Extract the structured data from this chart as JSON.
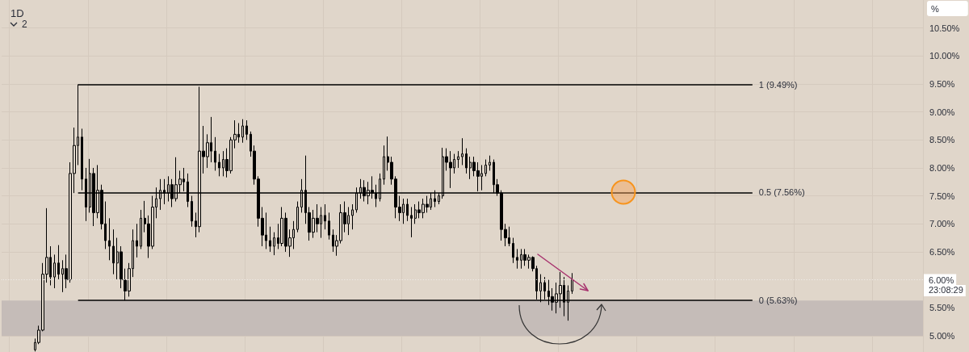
{
  "chart_data": {
    "type": "candlestick",
    "title": "1D",
    "categories": [
      null,
      null,
      null,
      null,
      null,
      null,
      null,
      null,
      null,
      null,
      null,
      null,
      null,
      null,
      null,
      null,
      null,
      null,
      null,
      null,
      null,
      null,
      null,
      null,
      null,
      null,
      null,
      null,
      null,
      null,
      null,
      null,
      null,
      null,
      null,
      null,
      null,
      null,
      null,
      null,
      null,
      null,
      null,
      null,
      null,
      null,
      null,
      null,
      null,
      null,
      null,
      null,
      null,
      null,
      null,
      null,
      null,
      null,
      null,
      null,
      null,
      null,
      null,
      null,
      null,
      null,
      null,
      null,
      null,
      null,
      null,
      null,
      null,
      null,
      null,
      null,
      null,
      null,
      null,
      null,
      null,
      null,
      null,
      null,
      null,
      null,
      null,
      null,
      null,
      null,
      null,
      null,
      null,
      null,
      null,
      null,
      null,
      null,
      null,
      null,
      null,
      null,
      null,
      null,
      null,
      null,
      null,
      null,
      null,
      null,
      null,
      null,
      null,
      null,
      null,
      null,
      null,
      null,
      null,
      null,
      null,
      null,
      null,
      null,
      null,
      null,
      null,
      null,
      null,
      null,
      null,
      null,
      null,
      null,
      null,
      null,
      null,
      null,
      null,
      null,
      null,
      null,
      null,
      null,
      null,
      null,
      null,
      null,
      null,
      null,
      null,
      null,
      null,
      null,
      null,
      null,
      null,
      null,
      null,
      null,
      null,
      null,
      null,
      null,
      null,
      null,
      null,
      null,
      null,
      null,
      null,
      null,
      null,
      null,
      null,
      null,
      null,
      null,
      null,
      null,
      null,
      null,
      null,
      null,
      null,
      null,
      null,
      null,
      null,
      null,
      null,
      null,
      null,
      null,
      null,
      null,
      null,
      null,
      null,
      null,
      null,
      null,
      null,
      null,
      null,
      null,
      null,
      null,
      null,
      null,
      null,
      null,
      null,
      null,
      null,
      null,
      null,
      null,
      null,
      null,
      null,
      null,
      null,
      null,
      null,
      null,
      null,
      null,
      null,
      null,
      null,
      null,
      null,
      null,
      null
    ],
    "ohlc": [
      null,
      null,
      null,
      null,
      null,
      null,
      null,
      null,
      [
        4.75,
        4.95,
        4.72,
        4.88
      ],
      [
        4.88,
        5.18,
        4.85,
        5.1
      ],
      [
        5.1,
        6.3,
        5.08,
        6.1
      ],
      [
        6.1,
        7.28,
        5.95,
        6.4
      ],
      [
        6.4,
        6.6,
        5.9,
        6.05
      ],
      [
        6.05,
        6.45,
        5.85,
        6.3
      ],
      [
        6.3,
        6.62,
        6.0,
        6.1
      ],
      [
        6.1,
        6.35,
        5.78,
        6.2
      ],
      [
        6.2,
        6.45,
        5.85,
        6.0
      ],
      [
        6.0,
        8.1,
        5.95,
        7.9
      ],
      [
        7.9,
        8.72,
        7.55,
        8.4
      ],
      [
        8.4,
        9.49,
        8.05,
        8.55
      ],
      [
        8.55,
        8.7,
        7.6,
        7.8
      ],
      [
        7.8,
        8.0,
        7.05,
        7.3
      ],
      [
        7.3,
        8.16,
        7.2,
        7.9
      ],
      [
        7.9,
        8.0,
        6.96,
        7.2
      ],
      [
        7.2,
        8.05,
        7.1,
        7.6
      ],
      [
        7.6,
        7.7,
        6.9,
        7.0
      ],
      [
        7.0,
        7.4,
        6.55,
        6.7
      ],
      [
        6.7,
        7.1,
        6.35,
        6.6
      ],
      [
        6.6,
        6.9,
        6.1,
        6.3
      ],
      [
        6.3,
        6.75,
        6.0,
        6.5
      ],
      [
        6.5,
        6.6,
        5.85,
        6.0
      ],
      [
        6.0,
        6.2,
        5.63,
        5.8
      ],
      [
        5.8,
        6.3,
        5.7,
        6.2
      ],
      [
        6.2,
        6.9,
        6.05,
        6.7
      ],
      [
        6.7,
        7.0,
        6.4,
        6.6
      ],
      [
        6.6,
        7.25,
        6.55,
        7.1
      ],
      [
        7.1,
        7.41,
        6.85,
        7.0
      ],
      [
        7.0,
        7.15,
        6.39,
        6.6
      ],
      [
        6.6,
        7.5,
        6.55,
        7.3
      ],
      [
        7.3,
        7.65,
        7.1,
        7.45
      ],
      [
        7.45,
        7.8,
        7.25,
        7.6
      ],
      [
        7.6,
        7.8,
        7.35,
        7.55
      ],
      [
        7.55,
        7.85,
        7.4,
        7.7
      ],
      [
        7.7,
        7.8,
        7.3,
        7.45
      ],
      [
        7.45,
        8.19,
        7.4,
        7.7
      ],
      [
        7.7,
        7.95,
        7.55,
        7.8
      ],
      [
        7.8,
        8.0,
        7.58,
        7.75
      ],
      [
        7.75,
        7.9,
        7.3,
        7.4
      ],
      [
        7.4,
        7.5,
        6.95,
        7.05
      ],
      [
        7.05,
        7.2,
        6.76,
        6.95
      ],
      [
        6.95,
        9.45,
        6.85,
        8.3
      ],
      [
        8.3,
        8.75,
        7.9,
        8.2
      ],
      [
        8.2,
        8.6,
        8.0,
        8.45
      ],
      [
        8.45,
        8.91,
        8.1,
        8.3
      ],
      [
        8.3,
        8.55,
        7.95,
        8.1
      ],
      [
        8.1,
        8.25,
        7.85,
        8.0
      ],
      [
        8.0,
        8.3,
        7.85,
        8.15
      ],
      [
        8.15,
        8.35,
        7.83,
        7.95
      ],
      [
        7.95,
        8.55,
        7.9,
        8.5
      ],
      [
        8.5,
        8.85,
        8.35,
        8.6
      ],
      [
        8.6,
        8.8,
        8.45,
        8.55
      ],
      [
        8.55,
        8.87,
        8.45,
        8.75
      ],
      [
        8.75,
        8.85,
        8.5,
        8.6
      ],
      [
        8.6,
        8.65,
        8.2,
        8.3
      ],
      [
        8.3,
        8.4,
        7.7,
        7.8
      ],
      [
        7.8,
        7.85,
        6.95,
        7.1
      ],
      [
        7.1,
        7.3,
        6.6,
        6.8
      ],
      [
        6.8,
        7.2,
        6.55,
        6.7
      ],
      [
        6.7,
        6.95,
        6.5,
        6.6
      ],
      [
        6.6,
        6.85,
        6.44,
        6.75
      ],
      [
        6.75,
        7.0,
        6.55,
        6.65
      ],
      [
        6.65,
        7.3,
        6.6,
        7.1
      ],
      [
        7.1,
        7.2,
        6.5,
        6.6
      ],
      [
        6.6,
        6.9,
        6.41,
        6.75
      ],
      [
        6.75,
        7.05,
        6.55,
        6.9
      ],
      [
        6.9,
        7.4,
        6.85,
        7.3
      ],
      [
        7.3,
        7.8,
        7.2,
        7.6
      ],
      [
        7.6,
        8.22,
        7.0,
        7.2
      ],
      [
        7.2,
        7.3,
        6.7,
        6.85
      ],
      [
        6.85,
        7.25,
        6.75,
        7.1
      ],
      [
        7.1,
        7.35,
        6.85,
        7.0
      ],
      [
        7.0,
        7.3,
        6.75,
        7.15
      ],
      [
        7.15,
        7.35,
        6.9,
        7.05
      ],
      [
        7.05,
        7.2,
        6.72,
        6.8
      ],
      [
        6.8,
        6.9,
        6.5,
        6.6
      ],
      [
        6.6,
        6.8,
        6.43,
        6.7
      ],
      [
        6.7,
        7.35,
        6.65,
        7.2
      ],
      [
        7.2,
        7.4,
        6.85,
        7.0
      ],
      [
        7.0,
        7.3,
        6.8,
        7.15
      ],
      [
        7.15,
        7.35,
        6.9,
        7.25
      ],
      [
        7.25,
        7.65,
        7.2,
        7.55
      ],
      [
        7.55,
        7.8,
        7.45,
        7.65
      ],
      [
        7.65,
        7.78,
        7.4,
        7.5
      ],
      [
        7.5,
        7.75,
        7.35,
        7.6
      ],
      [
        7.6,
        7.85,
        7.45,
        7.55
      ],
      [
        7.55,
        7.7,
        7.3,
        7.45
      ],
      [
        7.45,
        7.9,
        7.4,
        7.8
      ],
      [
        7.8,
        8.4,
        7.7,
        8.2
      ],
      [
        8.2,
        8.56,
        7.95,
        8.1
      ],
      [
        8.1,
        8.2,
        7.7,
        7.8
      ],
      [
        7.8,
        7.85,
        7.1,
        7.3
      ],
      [
        7.3,
        7.5,
        7.05,
        7.2
      ],
      [
        7.2,
        7.45,
        7.0,
        7.35
      ],
      [
        7.35,
        7.45,
        7.05,
        7.15
      ],
      [
        7.15,
        7.3,
        6.76,
        7.1
      ],
      [
        7.1,
        7.35,
        7.0,
        7.25
      ],
      [
        7.25,
        7.4,
        7.1,
        7.2
      ],
      [
        7.2,
        7.45,
        7.1,
        7.35
      ],
      [
        7.35,
        7.5,
        7.2,
        7.3
      ],
      [
        7.3,
        7.55,
        7.25,
        7.45
      ],
      [
        7.45,
        7.6,
        7.3,
        7.4
      ],
      [
        7.4,
        7.55,
        7.35,
        7.5
      ],
      [
        7.5,
        8.36,
        7.45,
        8.2
      ],
      [
        8.2,
        8.35,
        7.95,
        8.1
      ],
      [
        8.1,
        8.3,
        7.64,
        8.0
      ],
      [
        8.0,
        8.25,
        7.9,
        8.15
      ],
      [
        8.15,
        8.3,
        8.0,
        8.2
      ],
      [
        8.2,
        8.53,
        8.05,
        8.25
      ],
      [
        8.25,
        8.35,
        7.9,
        8.0
      ],
      [
        8.0,
        8.2,
        7.8,
        8.1
      ],
      [
        8.1,
        8.2,
        7.85,
        7.95
      ],
      [
        7.95,
        8.1,
        7.58,
        7.85
      ],
      [
        7.85,
        8.05,
        7.6,
        7.9
      ],
      [
        7.9,
        8.15,
        7.85,
        8.05
      ],
      [
        8.05,
        8.22,
        7.95,
        8.1
      ],
      [
        8.1,
        8.15,
        7.55,
        7.7
      ],
      [
        7.7,
        7.8,
        7.5,
        7.55
      ],
      [
        7.55,
        7.6,
        6.7,
        6.9
      ],
      [
        6.9,
        7.0,
        6.6,
        6.75
      ],
      [
        6.75,
        6.95,
        6.6,
        6.65
      ],
      [
        6.65,
        6.75,
        6.3,
        6.4
      ],
      [
        6.4,
        6.55,
        6.2,
        6.35
      ],
      [
        6.35,
        6.55,
        6.2,
        6.45
      ],
      [
        6.45,
        6.55,
        6.25,
        6.35
      ],
      [
        6.35,
        6.45,
        6.2,
        6.4
      ],
      [
        6.4,
        6.42,
        6.15,
        6.2
      ],
      [
        6.2,
        6.25,
        5.65,
        5.8
      ],
      [
        5.8,
        6.1,
        5.6,
        5.95
      ],
      [
        5.95,
        6.05,
        5.65,
        5.8
      ],
      [
        5.8,
        6.0,
        5.55,
        5.7
      ],
      [
        5.7,
        5.85,
        5.45,
        5.6
      ],
      [
        5.6,
        5.95,
        5.4,
        5.75
      ],
      [
        5.75,
        6.14,
        5.5,
        5.9
      ],
      [
        5.9,
        6.05,
        5.35,
        5.6
      ],
      [
        5.6,
        5.9,
        5.27,
        5.8
      ],
      [
        5.8,
        6.12,
        5.75,
        6.0
      ],
      null,
      null,
      null,
      null,
      null,
      null,
      null,
      null,
      null,
      null,
      null,
      null,
      null,
      null,
      null,
      null,
      null,
      null,
      null,
      null,
      null,
      null,
      null,
      null,
      null,
      null,
      null,
      null,
      null,
      null,
      null,
      null,
      null,
      null,
      null,
      null,
      null,
      null,
      null,
      null,
      null,
      null,
      null,
      null,
      null,
      null,
      null,
      null,
      null,
      null,
      null,
      null,
      null,
      null,
      null,
      null,
      null,
      null,
      null,
      null,
      null,
      null,
      null,
      null,
      null,
      null,
      null,
      null,
      null,
      null,
      null,
      null,
      null,
      null,
      null,
      null,
      null,
      null,
      null,
      null,
      null,
      null,
      null,
      null,
      null,
      null,
      null,
      null,
      null
    ],
    "color": "#000000",
    "ylabel": "%",
    "ylim": [
      4.71,
      11.0
    ],
    "yticks": [
      {
        "value": 5.0,
        "label": "5.00%"
      },
      {
        "value": 5.5,
        "label": "5.50%"
      },
      {
        "value": 6.0,
        "label": null
      },
      {
        "value": 6.5,
        "label": "6.50%"
      },
      {
        "value": 7.0,
        "label": "7.00%"
      },
      {
        "value": 7.5,
        "label": "7.50%"
      },
      {
        "value": 8.0,
        "label": "8.00%"
      },
      {
        "value": 8.5,
        "label": "8.50%"
      },
      {
        "value": 9.0,
        "label": "9.00%"
      },
      {
        "value": 9.5,
        "label": "9.50%"
      },
      {
        "value": 10.0,
        "label": "10.00%"
      },
      {
        "value": 10.5,
        "label": "10.50%"
      }
    ],
    "grid": true,
    "tick_labels": "y",
    "ref_lines": [
      {
        "axis": "y",
        "value": 9.49,
        "label": "1 (9.49%)",
        "color": "#000000"
      },
      {
        "axis": "y",
        "value": 7.56,
        "label": "0.5 (7.56%)",
        "color": "#000000"
      },
      {
        "axis": "y",
        "value": 5.63,
        "label": "0 (5.63%)",
        "color": "#000000"
      },
      {
        "axis": "y",
        "value": 6.0,
        "label": "6.00%",
        "color": "#f6f1ec",
        "line_style": "dotted"
      }
    ],
    "bands": [
      {
        "axis": "y",
        "from": 5.0,
        "to": 5.63,
        "color": "#c5bcb8"
      }
    ],
    "annotations": [
      "2",
      "23:08:29"
    ]
  }
}
